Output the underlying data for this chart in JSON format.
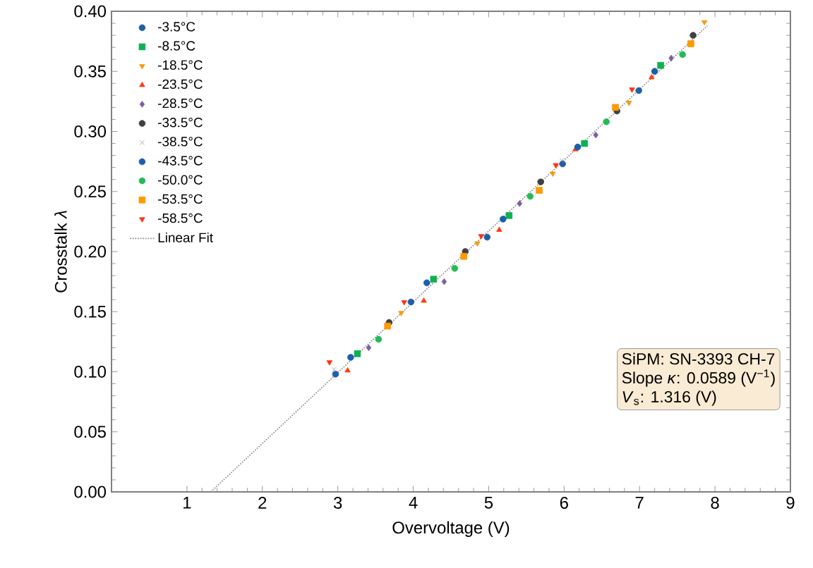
{
  "chart_data": {
    "type": "scatter",
    "xlabel": "Overvoltage (V)",
    "ylabel": "Crosstalk *λ*",
    "xlim": [
      0,
      9
    ],
    "xticks": [
      1,
      2,
      3,
      4,
      5,
      6,
      7,
      8,
      9
    ],
    "ylim": [
      0,
      0.4
    ],
    "yticks": [
      {
        "value": 0,
        "label": "0.00"
      },
      {
        "value": 0.05,
        "label": "0.05"
      },
      {
        "value": 0.1,
        "label": "0.10"
      },
      {
        "value": 0.15,
        "label": "0.15"
      },
      {
        "value": 0.2,
        "label": "0.20"
      },
      {
        "value": 0.25,
        "label": "0.25"
      },
      {
        "value": 0.3,
        "label": "0.30"
      },
      {
        "value": 0.35,
        "label": "0.35"
      },
      {
        "value": 0.4,
        "label": "0.40"
      }
    ],
    "grid": false,
    "legend": "top left",
    "annotations": [
      "SiPM: SN-3393 CH-7",
      "Slope *κ*: 0.0589 (V$^{−1}$)",
      "*V*$_{s}$: 1.316 (V)"
    ],
    "series": [
      {
        "name": "-3.5°C",
        "color": "#1f5fa8",
        "marker": "circle",
        "x": [
          2.97,
          3.97,
          4.98,
          5.98,
          6.99
        ],
        "values": [
          0.098,
          0.158,
          0.212,
          0.273,
          0.334
        ]
      },
      {
        "name": "-8.5°C",
        "color": "#10b050",
        "marker": "square",
        "x": [
          3.26,
          4.27,
          5.27,
          6.27,
          7.28
        ],
        "values": [
          0.115,
          0.177,
          0.23,
          0.29,
          0.355
        ]
      },
      {
        "name": "-18.5°C",
        "color": "#f59a10",
        "marker": "triangle_down",
        "x": [
          3.84,
          4.85,
          5.85,
          6.86,
          7.86
        ],
        "values": [
          0.149,
          0.207,
          0.265,
          0.324,
          0.391
        ]
      },
      {
        "name": "-23.5°C",
        "color": "#ff3d10",
        "marker": "triangle",
        "x": [
          3.13,
          4.14,
          5.14,
          6.15,
          7.16
        ],
        "values": [
          0.101,
          0.159,
          0.218,
          0.285,
          0.345
        ]
      },
      {
        "name": "-28.5°C",
        "color": "#7b5ea7",
        "marker": "diamond",
        "x": [
          3.41,
          4.41,
          5.41,
          6.42,
          7.42
        ],
        "values": [
          0.12,
          0.175,
          0.24,
          0.297,
          0.361
        ]
      },
      {
        "name": "-33.5°C",
        "color": "#404040",
        "marker": "circle",
        "x": [
          3.68,
          4.69,
          5.69,
          6.7,
          7.71
        ],
        "values": [
          0.141,
          0.2,
          0.258,
          0.317,
          0.38
        ]
      },
      {
        "name": "-38.5°C",
        "color": "#999999",
        "marker": "cross",
        "x": [
          2.95,
          5.97
        ],
        "values": [
          0.102,
          0.276
        ]
      },
      {
        "name": "-43.5°C",
        "color": "#1a5fad",
        "marker": "circle",
        "x": [
          3.17,
          4.18,
          5.19,
          6.18,
          7.2
        ],
        "values": [
          0.112,
          0.174,
          0.227,
          0.287,
          0.35
        ]
      },
      {
        "name": "-50.0°C",
        "color": "#22bb55",
        "marker": "circle",
        "x": [
          3.54,
          4.55,
          5.55,
          6.56,
          7.57
        ],
        "values": [
          0.127,
          0.186,
          0.246,
          0.308,
          0.364
        ]
      },
      {
        "name": "-53.5°C",
        "color": "#ff9900",
        "marker": "square",
        "x": [
          3.66,
          4.67,
          5.67,
          6.68,
          7.68
        ],
        "values": [
          0.138,
          0.196,
          0.251,
          0.32,
          0.373
        ]
      },
      {
        "name": "-58.5°C",
        "color": "#ff3311",
        "marker": "triangle_down",
        "x": [
          2.89,
          3.88,
          4.9,
          5.89,
          6.9
        ],
        "values": [
          0.108,
          0.158,
          0.213,
          0.272,
          0.335
        ]
      },
      {
        "name": "Linear Fit",
        "type": "line",
        "color": "#808080",
        "line_style": "dotted",
        "marker": "none",
        "x": [
          1.316,
          7.9
        ],
        "values": [
          0,
          0.388
        ]
      }
    ]
  }
}
